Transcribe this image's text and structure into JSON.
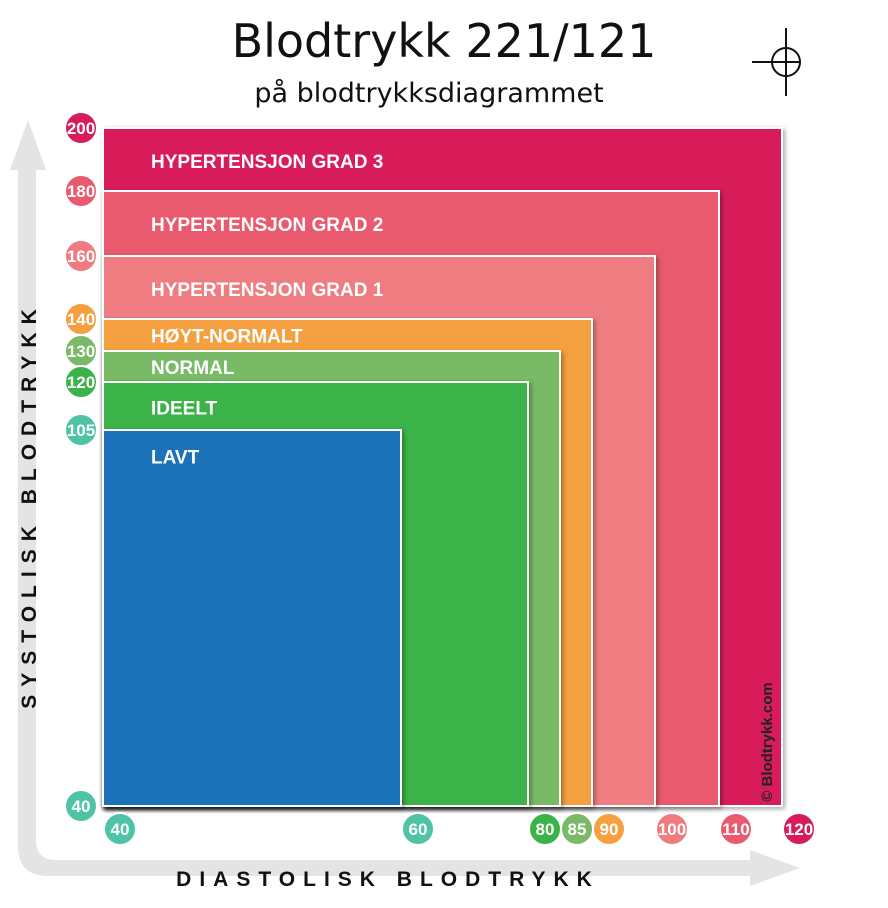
{
  "header": {
    "title": "Blodtrykk 221/121",
    "subtitle": "på blodtrykksdiagrammet"
  },
  "chart_data": {
    "type": "area",
    "title": "Blodtrykk 221/121",
    "subtitle": "på blodtrykksdiagrammet",
    "xlabel": "DIASTOLISK BLODTRYKK",
    "ylabel": "SYSTOLISK BLODTRYKK",
    "credit": "© Blodtrykk.com",
    "marker": {
      "systolic": 221,
      "diastolic": 121
    },
    "zones": [
      {
        "name": "HYPERTENSJON GRAD 3",
        "systolic_max": 200,
        "diastolic_max": 120,
        "color": "#d81b5a"
      },
      {
        "name": "HYPERTENSJON GRAD 2",
        "systolic_max": 180,
        "diastolic_max": 110,
        "color": "#ea5a6e"
      },
      {
        "name": "HYPERTENSJON GRAD 1",
        "systolic_max": 160,
        "diastolic_max": 100,
        "color": "#ef7b80"
      },
      {
        "name": "HØYT-NORMALT",
        "systolic_max": 140,
        "diastolic_max": 90,
        "color": "#f5a040"
      },
      {
        "name": "NORMAL",
        "systolic_max": 130,
        "diastolic_max": 85,
        "color": "#78ba65"
      },
      {
        "name": "IDEELT",
        "systolic_max": 120,
        "diastolic_max": 80,
        "color": "#3bb34a"
      },
      {
        "name": "LAVT",
        "systolic_max": 105,
        "diastolic_max": 60,
        "color": "#1c72b8"
      }
    ],
    "y_ticks": [
      {
        "label": "200",
        "value": 200,
        "color": "#d81b5a"
      },
      {
        "label": "180",
        "value": 180,
        "color": "#ea5a6e"
      },
      {
        "label": "160",
        "value": 160,
        "color": "#ef7b80"
      },
      {
        "label": "140",
        "value": 140,
        "color": "#f5a040"
      },
      {
        "label": "130",
        "value": 130,
        "color": "#78ba65"
      },
      {
        "label": "120",
        "value": 120,
        "color": "#3bb34a"
      },
      {
        "label": "105",
        "value": 105,
        "color": "#4fc3a6"
      },
      {
        "label": "40",
        "value": 40,
        "color": "#4fc3a6"
      }
    ],
    "x_ticks": [
      {
        "label": "40",
        "value": 40,
        "color": "#4fc3a6"
      },
      {
        "label": "60",
        "value": 60,
        "color": "#4fc3a6"
      },
      {
        "label": "80",
        "value": 80,
        "color": "#3bb34a"
      },
      {
        "label": "85",
        "value": 85,
        "color": "#78ba65"
      },
      {
        "label": "90",
        "value": 90,
        "color": "#f5a040"
      },
      {
        "label": "100",
        "value": 100,
        "color": "#ef7b80"
      },
      {
        "label": "110",
        "value": 110,
        "color": "#ea5a6e"
      },
      {
        "label": "120",
        "value": 120,
        "color": "#d81b5a"
      }
    ],
    "grid": false,
    "legend": "none"
  }
}
